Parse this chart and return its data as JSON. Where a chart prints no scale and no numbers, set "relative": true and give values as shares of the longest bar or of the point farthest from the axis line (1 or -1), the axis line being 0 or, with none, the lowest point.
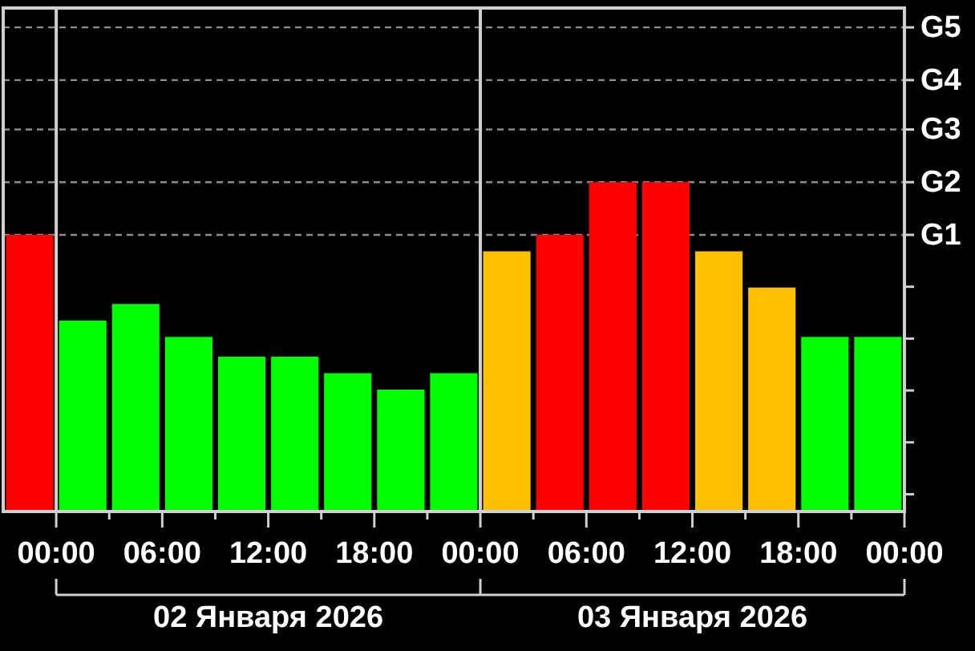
{
  "chart_data": {
    "type": "bar",
    "relative": true,
    "x": [
      "2026-01-01T22:30",
      "2026-01-02T01:30",
      "2026-01-02T04:30",
      "2026-01-02T07:30",
      "2026-01-02T10:30",
      "2026-01-02T13:30",
      "2026-01-02T16:30",
      "2026-01-02T19:30",
      "2026-01-02T22:30",
      "2026-01-03T01:30",
      "2026-01-03T04:30",
      "2026-01-03T07:30",
      "2026-01-03T10:30",
      "2026-01-03T13:30",
      "2026-01-03T16:30",
      "2026-01-03T19:30",
      "2026-01-03T22:30"
    ],
    "values": [
      0.84,
      0.58,
      0.63,
      0.53,
      0.47,
      0.47,
      0.42,
      0.37,
      0.42,
      0.79,
      0.84,
      1,
      1,
      0.79,
      0.68,
      0.53,
      0.53
    ],
    "colors": [
      "#ff0000",
      "#00ff00",
      "#00ff00",
      "#00ff00",
      "#00ff00",
      "#00ff00",
      "#00ff00",
      "#00ff00",
      "#00ff00",
      "#ffc000",
      "#ff0000",
      "#ff0000",
      "#ff0000",
      "#ffc000",
      "#ffc000",
      "#00ff00",
      "#00ff00"
    ],
    "xlim": [
      "2026-01-01T21:00",
      "2026-01-04T00:00"
    ],
    "xticks": [
      {
        "value": "2026-01-02T00:00",
        "label": "00:00"
      },
      {
        "value": "2026-01-02T03:00",
        "label": null
      },
      {
        "value": "2026-01-02T06:00",
        "label": "06:00"
      },
      {
        "value": "2026-01-02T09:00",
        "label": null
      },
      {
        "value": "2026-01-02T12:00",
        "label": "12:00"
      },
      {
        "value": "2026-01-02T15:00",
        "label": null
      },
      {
        "value": "2026-01-02T18:00",
        "label": "18:00"
      },
      {
        "value": "2026-01-02T21:00",
        "label": null
      },
      {
        "value": "2026-01-03T00:00",
        "label": "00:00"
      },
      {
        "value": "2026-01-03T03:00",
        "label": null
      },
      {
        "value": "2026-01-03T06:00",
        "label": "06:00"
      },
      {
        "value": "2026-01-03T09:00",
        "label": null
      },
      {
        "value": "2026-01-03T12:00",
        "label": "12:00"
      },
      {
        "value": "2026-01-03T15:00",
        "label": null
      },
      {
        "value": "2026-01-03T18:00",
        "label": "18:00"
      },
      {
        "value": "2026-01-03T21:00",
        "label": null
      },
      {
        "value": "2026-01-04T00:00",
        "label": "00:00"
      }
    ],
    "x2lim": [
      "2026-01-02T00:00",
      "2026-01-04T00:00"
    ],
    "x2ticks": [
      {
        "value": "2026-01-02T00:00",
        "label": null
      },
      {
        "value": "2026-01-02T12:00",
        "label": "02 Января 2026"
      },
      {
        "value": "2026-01-03T00:00",
        "label": null
      },
      {
        "value": "2026-01-03T12:00",
        "label": "03 Января 2026"
      },
      {
        "value": "2026-01-04T00:00",
        "label": null
      }
    ],
    "ref_lines": [
      {
        "axis": "y",
        "value": 0.84,
        "label": "G1",
        "color": "#8c8c8c",
        "line_style": "dashed"
      },
      {
        "axis": "y",
        "value": 1,
        "label": "G2",
        "color": "#8c8c8c",
        "line_style": "dashed"
      },
      {
        "axis": "y",
        "value": 1.16,
        "label": "G3",
        "color": "#8c8c8c",
        "line_style": "dashed"
      },
      {
        "axis": "y",
        "value": 1.31,
        "label": "G4",
        "color": "#8c8c8c",
        "line_style": "dashed"
      },
      {
        "axis": "y",
        "value": 1.47,
        "label": "G5",
        "color": "#8c8c8c",
        "line_style": "dashed"
      },
      {
        "axis": "x",
        "value": "2026-01-02T00:00",
        "color": "#d0d0d0",
        "line_style": "solid"
      },
      {
        "axis": "x",
        "value": "2026-01-03T00:00",
        "color": "#d0d0d0",
        "line_style": "solid"
      }
    ]
  }
}
